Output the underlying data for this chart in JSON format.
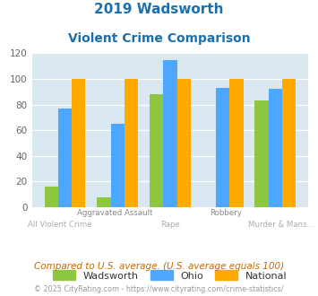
{
  "title_line1": "2019 Wadsworth",
  "title_line2": "Violent Crime Comparison",
  "wadsworth": [
    16,
    8,
    88,
    0,
    83
  ],
  "ohio": [
    77,
    65,
    115,
    93,
    92
  ],
  "national": [
    100,
    100,
    100,
    100,
    100
  ],
  "color_wadsworth": "#8dc63f",
  "color_ohio": "#4da6ff",
  "color_national": "#ffaa00",
  "ylim": [
    0,
    120
  ],
  "yticks": [
    0,
    20,
    40,
    60,
    80,
    100,
    120
  ],
  "title_color": "#1a6fad",
  "bg_color": "#d9e8f0",
  "grid_color": "#ffffff",
  "xlabel_row1": [
    "",
    "Aggravated Assault",
    "",
    "Robbery",
    ""
  ],
  "xlabel_row2": [
    "All Violent Crime",
    "",
    "Rape",
    "",
    "Murder & Mans..."
  ],
  "legend_labels": [
    "Wadsworth",
    "Ohio",
    "National"
  ],
  "footnote1": "Compared to U.S. average. (U.S. average equals 100)",
  "footnote2": "© 2025 CityRating.com - https://www.cityrating.com/crime-statistics/",
  "footnote1_color": "#cc6600",
  "footnote2_color": "#999999"
}
